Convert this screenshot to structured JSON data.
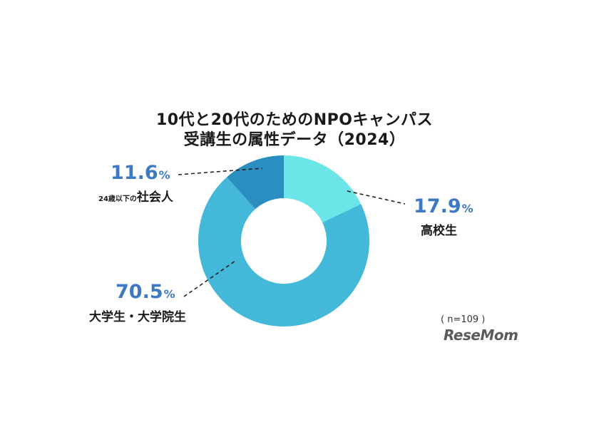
{
  "title_line1": "10代と20代のためのNPOキャンパス",
  "title_line2": "受講生の属性データ（2024）",
  "sample_note": "( n=109 )",
  "logo_text": "ReseMom",
  "chart_data": {
    "type": "pie",
    "donut": true,
    "slices": [
      {
        "label": "高校生",
        "value": 17.9,
        "color": "#6ce5e8"
      },
      {
        "label": "大学生・大学院生",
        "value": 70.5,
        "color": "#43b8d8"
      },
      {
        "label": "24歳以下の社会人",
        "value": 11.6,
        "color": "#2b8ec0"
      }
    ],
    "labels": [
      {
        "pct_value": "17.9",
        "pct_unit": "%",
        "category": "高校生"
      },
      {
        "pct_value": "70.5",
        "pct_unit": "%",
        "category": "大学生・大学院生"
      },
      {
        "pct_value": "11.6",
        "pct_unit": "%",
        "category_small": "24歳以下の",
        "category_big": "社会人"
      }
    ]
  }
}
